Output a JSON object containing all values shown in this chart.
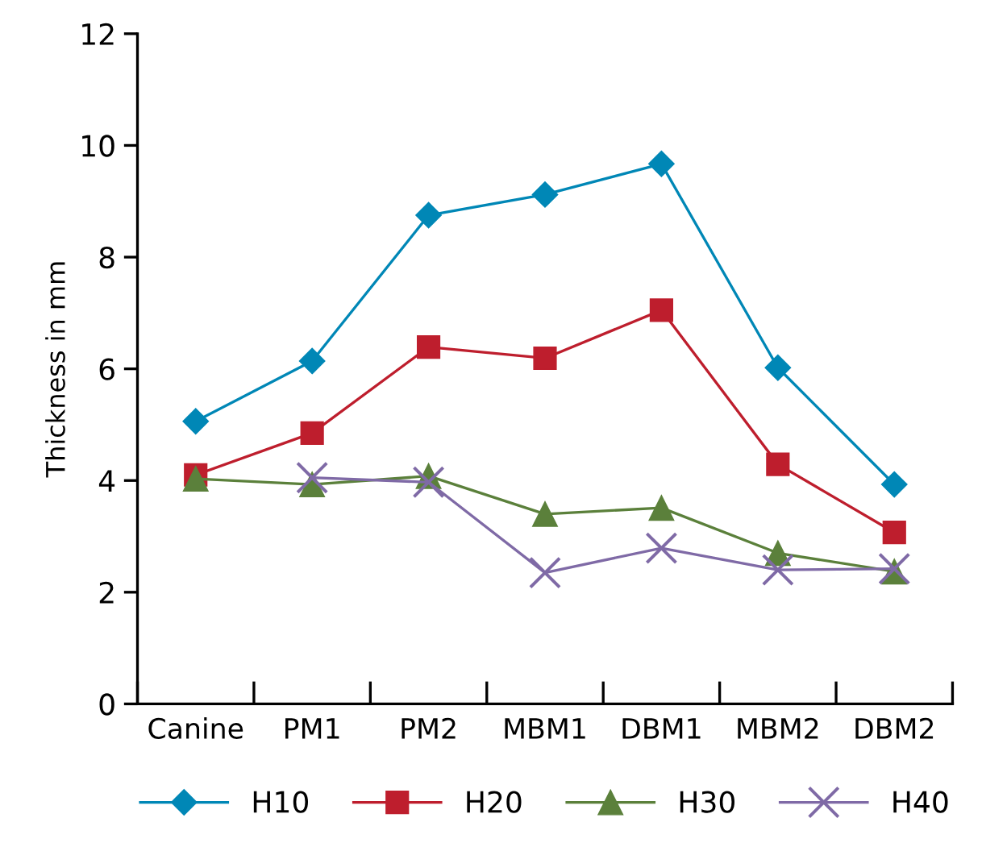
{
  "chart_data": {
    "type": "line",
    "ylabel": "Thickness in mm",
    "categories": [
      "Canine",
      "PM1",
      "PM2",
      "MBM1",
      "DBM1",
      "MBM2",
      "DBM2"
    ],
    "ylim": [
      0,
      12
    ],
    "yticks": [
      0,
      2,
      4,
      6,
      8,
      10,
      12
    ],
    "grid": false,
    "legend": "bottom",
    "line_style": "solid",
    "series": [
      {
        "name": "H10",
        "color": "#0087b6",
        "marker": "diamond",
        "values": [
          5.06,
          6.14,
          8.75,
          9.12,
          9.67,
          6.02,
          3.93
        ]
      },
      {
        "name": "H20",
        "color": "#be1e2d",
        "marker": "square",
        "values": [
          4.1,
          4.85,
          6.39,
          6.19,
          7.05,
          4.29,
          3.07
        ]
      },
      {
        "name": "H30",
        "color": "#5b803b",
        "marker": "triangle",
        "values": [
          4.03,
          3.93,
          4.08,
          3.4,
          3.51,
          2.7,
          2.37
        ]
      },
      {
        "name": "H40",
        "color": "#7f6aa6",
        "marker": "cross",
        "values": [
          null,
          4.05,
          3.97,
          2.35,
          2.79,
          2.4,
          2.42
        ]
      }
    ]
  }
}
